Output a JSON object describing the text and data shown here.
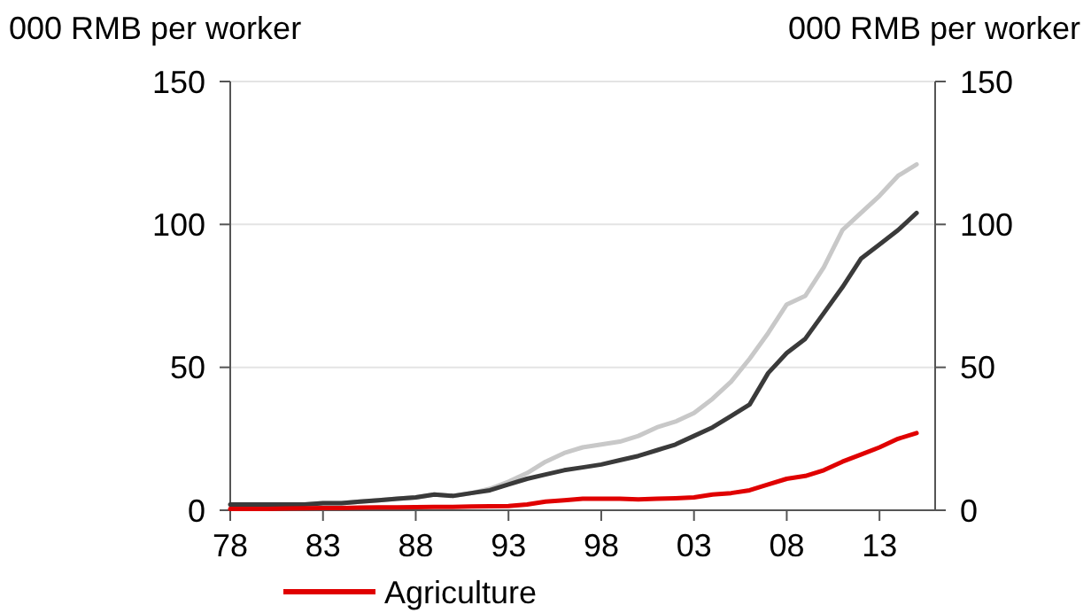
{
  "chart_data": {
    "type": "line",
    "ylabel": "000 RMB per worker",
    "y2label": "000 RMB per worker",
    "x": [
      1978,
      1979,
      1980,
      1981,
      1982,
      1983,
      1984,
      1985,
      1986,
      1987,
      1988,
      1989,
      1990,
      1991,
      1992,
      1993,
      1994,
      1995,
      1996,
      1997,
      1998,
      1999,
      2000,
      2001,
      2002,
      2003,
      2004,
      2005,
      2006,
      2007,
      2008,
      2009,
      2010,
      2011,
      2012,
      2013,
      2014,
      2015
    ],
    "xlim": [
      1978,
      2016
    ],
    "xticks": [
      {
        "value": 1978,
        "label": "78"
      },
      {
        "value": 1983,
        "label": "83"
      },
      {
        "value": 1988,
        "label": "88"
      },
      {
        "value": 1993,
        "label": "93"
      },
      {
        "value": 1998,
        "label": "98"
      },
      {
        "value": 2003,
        "label": "03"
      },
      {
        "value": 2008,
        "label": "08"
      },
      {
        "value": 2013,
        "label": "13"
      }
    ],
    "ylim": [
      0,
      150
    ],
    "yticks": [
      0,
      50,
      100,
      150
    ],
    "y2lim": [
      0,
      150
    ],
    "y2ticks": [
      0,
      50,
      100,
      150
    ],
    "grid": "y",
    "legend": "bottom",
    "series": [
      {
        "color": "#c8c8c8",
        "values": [
          null,
          null,
          null,
          null,
          2,
          2.5,
          2.5,
          3,
          3.5,
          4,
          4.5,
          5.5,
          5,
          6,
          7.5,
          10,
          13,
          17,
          20,
          22,
          23,
          24,
          26,
          29,
          31,
          34,
          39,
          45,
          53,
          62,
          72,
          75,
          85,
          98,
          104,
          110,
          117,
          121
        ]
      },
      {
        "color": "#3a3a3a",
        "values": [
          2,
          2,
          2,
          2,
          2,
          2.5,
          2.5,
          3,
          3.5,
          4,
          4.5,
          5.5,
          5,
          6,
          7,
          9,
          11,
          12.5,
          14,
          15,
          16,
          17.5,
          19,
          21,
          23,
          26,
          29,
          33,
          37,
          48,
          55,
          60,
          69,
          78,
          88,
          93,
          98,
          104
        ]
      },
      {
        "name": "Agriculture",
        "color": "#e00000",
        "values": [
          0.5,
          0.5,
          0.5,
          0.6,
          0.7,
          0.8,
          0.8,
          0.9,
          1,
          1,
          1.1,
          1.2,
          1.2,
          1.3,
          1.4,
          1.5,
          2,
          3,
          3.5,
          4,
          4,
          4,
          3.8,
          4,
          4.2,
          4.5,
          5.5,
          6,
          7,
          9,
          11,
          12,
          14,
          17,
          19.5,
          22,
          25,
          27
        ]
      }
    ]
  }
}
